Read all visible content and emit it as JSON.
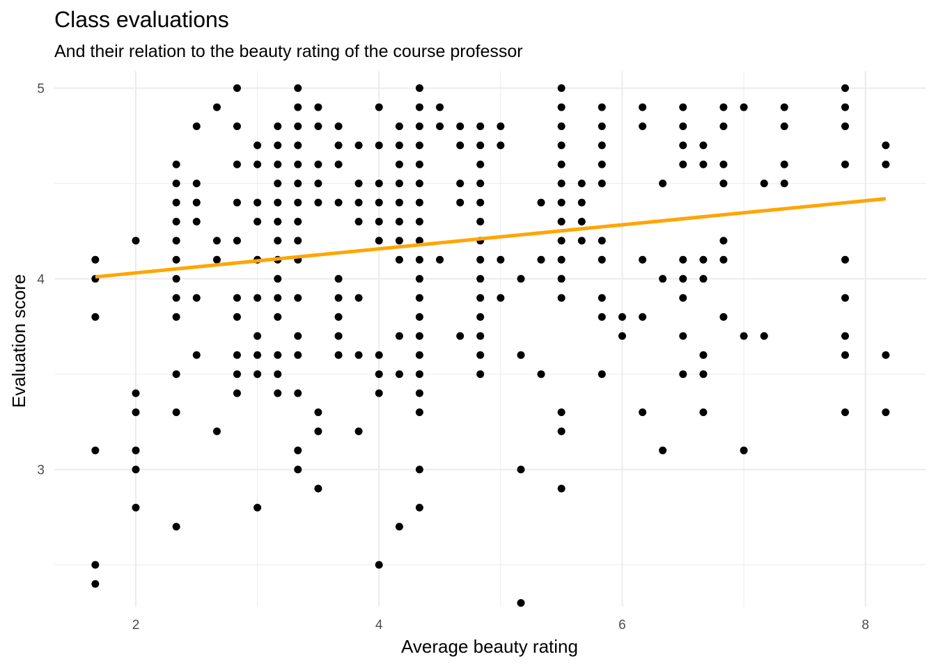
{
  "chart_data": {
    "type": "scatter",
    "title": "Class evaluations",
    "subtitle": "And their relation to the beauty rating of the course professor",
    "xlabel": "Average beauty rating",
    "ylabel": "Evaluation score",
    "xlim": [
      1.33,
      8.5
    ],
    "ylim": [
      2.28,
      5.09
    ],
    "x_ticks": [
      2,
      4,
      6,
      8
    ],
    "y_ticks": [
      3,
      4,
      5
    ],
    "grid": true,
    "colors": {
      "points": "#000000",
      "trend": "#FFA500",
      "grid": "#ebebeb"
    },
    "trend_line": {
      "x": [
        1.667,
        8.167
      ],
      "y": [
        4.01,
        4.42
      ]
    },
    "points": [
      [
        1.667,
        4.1
      ],
      [
        1.667,
        4.0
      ],
      [
        1.667,
        3.8
      ],
      [
        1.667,
        3.1
      ],
      [
        1.667,
        2.5
      ],
      [
        1.667,
        2.4
      ],
      [
        2.0,
        4.2
      ],
      [
        2.0,
        3.4
      ],
      [
        2.0,
        3.3
      ],
      [
        2.0,
        3.1
      ],
      [
        2.0,
        3.0
      ],
      [
        2.0,
        2.8
      ],
      [
        2.333,
        4.6
      ],
      [
        2.333,
        4.5
      ],
      [
        2.333,
        4.4
      ],
      [
        2.333,
        4.3
      ],
      [
        2.333,
        4.2
      ],
      [
        2.333,
        4.1
      ],
      [
        2.333,
        4.0
      ],
      [
        2.333,
        3.9
      ],
      [
        2.333,
        3.8
      ],
      [
        2.333,
        3.5
      ],
      [
        2.333,
        3.3
      ],
      [
        2.333,
        2.7
      ],
      [
        2.5,
        4.8
      ],
      [
        2.5,
        4.5
      ],
      [
        2.5,
        4.4
      ],
      [
        2.5,
        4.3
      ],
      [
        2.5,
        3.9
      ],
      [
        2.5,
        3.6
      ],
      [
        2.667,
        4.9
      ],
      [
        2.667,
        4.2
      ],
      [
        2.667,
        4.1
      ],
      [
        2.667,
        3.2
      ],
      [
        2.833,
        5.0
      ],
      [
        2.833,
        4.8
      ],
      [
        2.833,
        4.6
      ],
      [
        2.833,
        4.4
      ],
      [
        2.833,
        4.2
      ],
      [
        2.833,
        3.9
      ],
      [
        2.833,
        3.8
      ],
      [
        2.833,
        3.6
      ],
      [
        2.833,
        3.5
      ],
      [
        2.833,
        3.4
      ],
      [
        3.0,
        4.7
      ],
      [
        3.0,
        4.6
      ],
      [
        3.0,
        4.4
      ],
      [
        3.0,
        4.3
      ],
      [
        3.0,
        4.1
      ],
      [
        3.0,
        3.9
      ],
      [
        3.0,
        3.7
      ],
      [
        3.0,
        3.6
      ],
      [
        3.0,
        3.5
      ],
      [
        3.0,
        2.8
      ],
      [
        3.167,
        4.8
      ],
      [
        3.167,
        4.7
      ],
      [
        3.167,
        4.6
      ],
      [
        3.167,
        4.5
      ],
      [
        3.167,
        4.4
      ],
      [
        3.167,
        4.3
      ],
      [
        3.167,
        4.2
      ],
      [
        3.167,
        4.1
      ],
      [
        3.167,
        4.0
      ],
      [
        3.167,
        3.9
      ],
      [
        3.167,
        3.8
      ],
      [
        3.167,
        3.6
      ],
      [
        3.167,
        3.5
      ],
      [
        3.167,
        3.4
      ],
      [
        3.333,
        5.0
      ],
      [
        3.333,
        4.9
      ],
      [
        3.333,
        4.8
      ],
      [
        3.333,
        4.7
      ],
      [
        3.333,
        4.6
      ],
      [
        3.333,
        4.5
      ],
      [
        3.333,
        4.4
      ],
      [
        3.333,
        4.3
      ],
      [
        3.333,
        4.2
      ],
      [
        3.333,
        4.1
      ],
      [
        3.333,
        3.9
      ],
      [
        3.333,
        3.7
      ],
      [
        3.333,
        3.6
      ],
      [
        3.333,
        3.4
      ],
      [
        3.333,
        3.1
      ],
      [
        3.333,
        3.0
      ],
      [
        3.5,
        4.9
      ],
      [
        3.5,
        4.8
      ],
      [
        3.5,
        4.6
      ],
      [
        3.5,
        4.5
      ],
      [
        3.5,
        4.4
      ],
      [
        3.5,
        3.3
      ],
      [
        3.5,
        3.2
      ],
      [
        3.5,
        2.9
      ],
      [
        3.667,
        4.8
      ],
      [
        3.667,
        4.7
      ],
      [
        3.667,
        4.6
      ],
      [
        3.667,
        4.4
      ],
      [
        3.667,
        4.0
      ],
      [
        3.667,
        3.9
      ],
      [
        3.667,
        3.8
      ],
      [
        3.667,
        3.7
      ],
      [
        3.667,
        3.6
      ],
      [
        3.833,
        4.7
      ],
      [
        3.833,
        4.5
      ],
      [
        3.833,
        4.4
      ],
      [
        3.833,
        4.3
      ],
      [
        3.833,
        3.9
      ],
      [
        3.833,
        3.6
      ],
      [
        3.833,
        3.2
      ],
      [
        4.0,
        4.9
      ],
      [
        4.0,
        4.7
      ],
      [
        4.0,
        4.5
      ],
      [
        4.0,
        4.4
      ],
      [
        4.0,
        4.3
      ],
      [
        4.0,
        4.2
      ],
      [
        4.0,
        3.6
      ],
      [
        4.0,
        3.5
      ],
      [
        4.0,
        3.4
      ],
      [
        4.0,
        2.5
      ],
      [
        4.167,
        4.8
      ],
      [
        4.167,
        4.7
      ],
      [
        4.167,
        4.6
      ],
      [
        4.167,
        4.5
      ],
      [
        4.167,
        4.4
      ],
      [
        4.167,
        4.3
      ],
      [
        4.167,
        4.2
      ],
      [
        4.167,
        4.1
      ],
      [
        4.167,
        3.7
      ],
      [
        4.167,
        3.5
      ],
      [
        4.167,
        2.7
      ],
      [
        4.333,
        5.0
      ],
      [
        4.333,
        4.9
      ],
      [
        4.333,
        4.8
      ],
      [
        4.333,
        4.7
      ],
      [
        4.333,
        4.6
      ],
      [
        4.333,
        4.5
      ],
      [
        4.333,
        4.4
      ],
      [
        4.333,
        4.3
      ],
      [
        4.333,
        4.2
      ],
      [
        4.333,
        4.1
      ],
      [
        4.333,
        4.0
      ],
      [
        4.333,
        3.9
      ],
      [
        4.333,
        3.8
      ],
      [
        4.333,
        3.7
      ],
      [
        4.333,
        3.6
      ],
      [
        4.333,
        3.5
      ],
      [
        4.333,
        3.4
      ],
      [
        4.333,
        3.3
      ],
      [
        4.333,
        3.0
      ],
      [
        4.333,
        2.8
      ],
      [
        4.5,
        4.9
      ],
      [
        4.5,
        4.8
      ],
      [
        4.5,
        4.1
      ],
      [
        4.667,
        4.8
      ],
      [
        4.667,
        4.7
      ],
      [
        4.667,
        4.5
      ],
      [
        4.667,
        4.4
      ],
      [
        4.667,
        3.7
      ],
      [
        4.833,
        4.8
      ],
      [
        4.833,
        4.7
      ],
      [
        4.833,
        4.6
      ],
      [
        4.833,
        4.5
      ],
      [
        4.833,
        4.4
      ],
      [
        4.833,
        4.3
      ],
      [
        4.833,
        4.2
      ],
      [
        4.833,
        4.1
      ],
      [
        4.833,
        4.0
      ],
      [
        4.833,
        3.9
      ],
      [
        4.833,
        3.8
      ],
      [
        4.833,
        3.7
      ],
      [
        4.833,
        3.6
      ],
      [
        4.833,
        3.5
      ],
      [
        5.0,
        4.8
      ],
      [
        5.0,
        4.7
      ],
      [
        5.0,
        4.1
      ],
      [
        5.0,
        3.9
      ],
      [
        5.167,
        4.0
      ],
      [
        5.167,
        3.6
      ],
      [
        5.167,
        3.0
      ],
      [
        5.167,
        2.3
      ],
      [
        5.333,
        4.4
      ],
      [
        5.333,
        4.1
      ],
      [
        5.333,
        3.5
      ],
      [
        5.5,
        5.0
      ],
      [
        5.5,
        4.9
      ],
      [
        5.5,
        4.8
      ],
      [
        5.5,
        4.7
      ],
      [
        5.5,
        4.6
      ],
      [
        5.5,
        4.5
      ],
      [
        5.5,
        4.4
      ],
      [
        5.5,
        4.3
      ],
      [
        5.5,
        4.2
      ],
      [
        5.5,
        4.1
      ],
      [
        5.5,
        4.0
      ],
      [
        5.5,
        3.9
      ],
      [
        5.5,
        3.3
      ],
      [
        5.5,
        3.2
      ],
      [
        5.5,
        2.9
      ],
      [
        5.667,
        4.5
      ],
      [
        5.667,
        4.4
      ],
      [
        5.667,
        4.3
      ],
      [
        5.667,
        4.2
      ],
      [
        5.833,
        4.9
      ],
      [
        5.833,
        4.8
      ],
      [
        5.833,
        4.7
      ],
      [
        5.833,
        4.6
      ],
      [
        5.833,
        4.5
      ],
      [
        5.833,
        4.2
      ],
      [
        5.833,
        4.1
      ],
      [
        5.833,
        3.9
      ],
      [
        5.833,
        3.8
      ],
      [
        5.833,
        3.5
      ],
      [
        6.0,
        3.8
      ],
      [
        6.0,
        3.7
      ],
      [
        6.167,
        4.9
      ],
      [
        6.167,
        4.8
      ],
      [
        6.167,
        4.1
      ],
      [
        6.167,
        3.8
      ],
      [
        6.167,
        3.3
      ],
      [
        6.333,
        4.5
      ],
      [
        6.333,
        4.0
      ],
      [
        6.333,
        3.1
      ],
      [
        6.5,
        4.9
      ],
      [
        6.5,
        4.8
      ],
      [
        6.5,
        4.7
      ],
      [
        6.5,
        4.6
      ],
      [
        6.5,
        4.1
      ],
      [
        6.5,
        4.0
      ],
      [
        6.5,
        3.9
      ],
      [
        6.5,
        3.7
      ],
      [
        6.5,
        3.5
      ],
      [
        6.667,
        4.7
      ],
      [
        6.667,
        4.6
      ],
      [
        6.667,
        4.1
      ],
      [
        6.667,
        4.0
      ],
      [
        6.667,
        3.6
      ],
      [
        6.667,
        3.5
      ],
      [
        6.667,
        3.3
      ],
      [
        6.833,
        4.9
      ],
      [
        6.833,
        4.8
      ],
      [
        6.833,
        4.6
      ],
      [
        6.833,
        4.5
      ],
      [
        6.833,
        4.2
      ],
      [
        6.833,
        4.1
      ],
      [
        6.833,
        3.8
      ],
      [
        7.0,
        4.9
      ],
      [
        7.0,
        3.7
      ],
      [
        7.0,
        3.1
      ],
      [
        7.167,
        4.5
      ],
      [
        7.167,
        3.7
      ],
      [
        7.333,
        4.9
      ],
      [
        7.333,
        4.8
      ],
      [
        7.333,
        4.6
      ],
      [
        7.333,
        4.5
      ],
      [
        7.833,
        5.0
      ],
      [
        7.833,
        4.9
      ],
      [
        7.833,
        4.8
      ],
      [
        7.833,
        4.6
      ],
      [
        7.833,
        4.1
      ],
      [
        7.833,
        3.9
      ],
      [
        7.833,
        3.7
      ],
      [
        7.833,
        3.6
      ],
      [
        7.833,
        3.3
      ],
      [
        8.167,
        4.7
      ],
      [
        8.167,
        4.6
      ],
      [
        8.167,
        3.6
      ],
      [
        8.167,
        3.3
      ]
    ]
  }
}
